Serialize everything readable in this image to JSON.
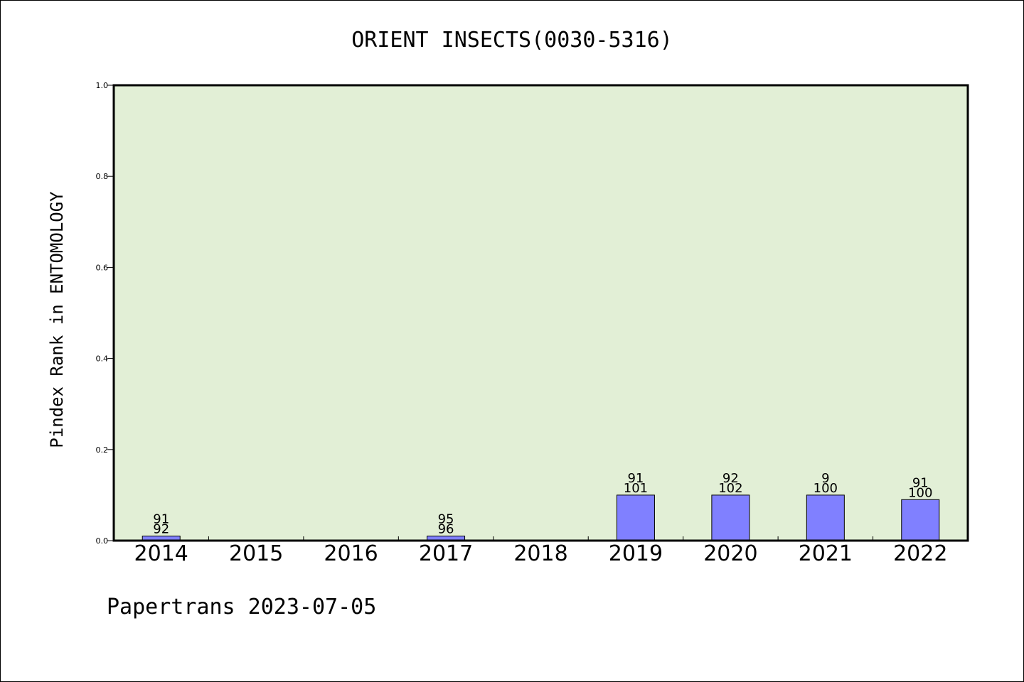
{
  "chart_data": {
    "type": "bar",
    "title": "ORIENT INSECTS(0030-5316)",
    "ylabel": "Pindex Rank in ENTOMOLOGY",
    "xlabel": "",
    "categories": [
      "2014",
      "2015",
      "2016",
      "2017",
      "2018",
      "2019",
      "2020",
      "2021",
      "2022"
    ],
    "values": [
      0.01,
      null,
      null,
      0.01,
      null,
      0.1,
      0.1,
      0.1,
      0.09
    ],
    "data_labels": [
      {
        "top": "91",
        "bottom": "92"
      },
      null,
      null,
      {
        "top": "95",
        "bottom": "96"
      },
      null,
      {
        "top": "91",
        "bottom": "101"
      },
      {
        "top": "92",
        "bottom": "102"
      },
      {
        "top": "9",
        "bottom": "100"
      },
      {
        "top": "91",
        "bottom": "100"
      }
    ],
    "ylim": [
      0,
      1.0
    ],
    "yticks": [
      "0.0",
      "0.2",
      "0.4",
      "0.6",
      "0.8",
      "1.0"
    ],
    "ytick_values": [
      0,
      0.2,
      0.4,
      0.6,
      0.8,
      1.0
    ],
    "grid": false,
    "colors": {
      "plot_background": "#e2efd6",
      "bar": "#8080ff",
      "axis": "#000000"
    }
  },
  "footer": "Papertrans 2023-07-05"
}
